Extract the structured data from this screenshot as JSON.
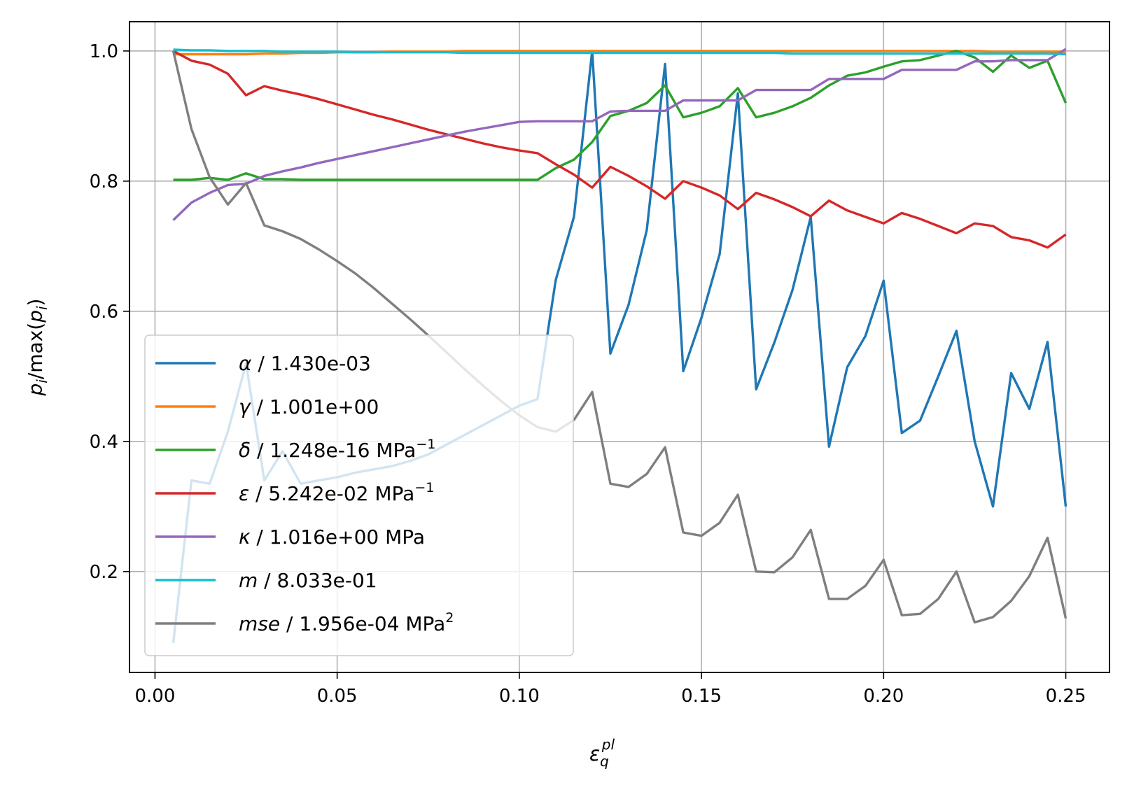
{
  "chart_data": {
    "type": "line",
    "xlabel": {
      "base": "ε",
      "sub": "q",
      "sup": "pl"
    },
    "ylabel": {
      "p": "p",
      "sub": "i",
      "text": "/max(",
      "p2": "p",
      "sub2": "i",
      "close": ")"
    },
    "xlim": [
      -0.007,
      0.262
    ],
    "ylim": [
      0.045,
      1.045
    ],
    "xticks": [
      0.0,
      0.05,
      0.1,
      0.15,
      0.2,
      0.25
    ],
    "xtick_labels": [
      "0.00",
      "0.05",
      "0.10",
      "0.15",
      "0.20",
      "0.25"
    ],
    "yticks": [
      0.2,
      0.4,
      0.6,
      0.8,
      1.0
    ],
    "ytick_labels": [
      "0.2",
      "0.4",
      "0.6",
      "0.8",
      "1.0"
    ],
    "grid": true,
    "legend_position": "lower-left",
    "x": [
      0.005,
      0.01,
      0.015,
      0.02,
      0.025,
      0.03,
      0.035,
      0.04,
      0.045,
      0.05,
      0.055,
      0.06,
      0.065,
      0.07,
      0.075,
      0.08,
      0.085,
      0.09,
      0.095,
      0.1,
      0.105,
      0.11,
      0.115,
      0.12,
      0.125,
      0.13,
      0.135,
      0.14,
      0.145,
      0.15,
      0.155,
      0.16,
      0.165,
      0.17,
      0.175,
      0.18,
      0.185,
      0.19,
      0.195,
      0.2,
      0.205,
      0.21,
      0.215,
      0.22,
      0.225,
      0.23,
      0.235,
      0.24,
      0.245,
      0.25
    ],
    "series": [
      {
        "name": "alpha",
        "symbol": "α",
        "label": " / 1.430e-03",
        "unit_sup": "",
        "color": "#1f77b4",
        "values": [
          0.09,
          0.34,
          0.335,
          0.415,
          0.52,
          0.34,
          0.385,
          0.335,
          0.34,
          0.345,
          0.352,
          0.357,
          0.362,
          0.37,
          0.38,
          0.395,
          0.41,
          0.425,
          0.44,
          0.455,
          0.465,
          0.648,
          0.745,
          1.0,
          0.535,
          0.61,
          0.725,
          0.98,
          0.508,
          0.59,
          0.688,
          0.935,
          0.48,
          0.552,
          0.633,
          0.745,
          0.392,
          0.514,
          0.562,
          0.647,
          0.413,
          0.432,
          0.5,
          0.57,
          0.4,
          0.3,
          0.505,
          0.45,
          0.553,
          0.3
        ]
      },
      {
        "name": "gamma",
        "symbol": "γ",
        "label": " / 1.001e+00",
        "unit_sup": "",
        "color": "#ff7f0e",
        "values": [
          0.995,
          0.995,
          0.995,
          0.995,
          0.995,
          0.996,
          0.996,
          0.997,
          0.997,
          0.998,
          0.998,
          0.998,
          0.999,
          0.999,
          0.999,
          0.999,
          1.0,
          1.0,
          1.0,
          1.0,
          1.0,
          1.0,
          1.0,
          1.0,
          1.0,
          1.0,
          1.0,
          1.0,
          1.0,
          1.0,
          1.0,
          1.0,
          1.0,
          1.0,
          1.0,
          1.0,
          1.0,
          1.0,
          1.0,
          1.0,
          1.0,
          1.0,
          1.0,
          1.0,
          1.0,
          0.999,
          0.999,
          0.999,
          0.999,
          0.999
        ]
      },
      {
        "name": "delta",
        "symbol": "δ",
        "label": " / 1.248e-16 MPa",
        "unit_sup": "−1",
        "color": "#2ca02c",
        "values": [
          0.802,
          0.802,
          0.805,
          0.802,
          0.812,
          0.803,
          0.803,
          0.802,
          0.802,
          0.802,
          0.802,
          0.802,
          0.802,
          0.802,
          0.802,
          0.802,
          0.802,
          0.802,
          0.802,
          0.802,
          0.802,
          0.82,
          0.833,
          0.86,
          0.9,
          0.908,
          0.92,
          0.947,
          0.898,
          0.905,
          0.915,
          0.943,
          0.898,
          0.905,
          0.915,
          0.928,
          0.947,
          0.962,
          0.967,
          0.976,
          0.984,
          0.986,
          0.993,
          1.0,
          0.99,
          0.968,
          0.993,
          0.974,
          0.985,
          0.92
        ]
      },
      {
        "name": "epsilon",
        "symbol": "ε",
        "label": " / 5.242e-02 MPa",
        "unit_sup": "−1",
        "color": "#d62728",
        "values": [
          1.0,
          0.985,
          0.979,
          0.965,
          0.932,
          0.946,
          0.939,
          0.933,
          0.926,
          0.918,
          0.91,
          0.902,
          0.895,
          0.887,
          0.879,
          0.872,
          0.865,
          0.858,
          0.852,
          0.847,
          0.843,
          0.826,
          0.81,
          0.79,
          0.822,
          0.808,
          0.792,
          0.773,
          0.8,
          0.79,
          0.778,
          0.757,
          0.782,
          0.772,
          0.76,
          0.746,
          0.77,
          0.755,
          0.745,
          0.735,
          0.751,
          0.742,
          0.731,
          0.72,
          0.735,
          0.731,
          0.714,
          0.709,
          0.698,
          0.718
        ]
      },
      {
        "name": "kappa",
        "symbol": "κ",
        "label": " / 1.016e+00 MPa",
        "unit_sup": "",
        "color": "#9467bd",
        "values": [
          0.74,
          0.767,
          0.782,
          0.794,
          0.796,
          0.808,
          0.815,
          0.821,
          0.828,
          0.834,
          0.84,
          0.846,
          0.852,
          0.858,
          0.864,
          0.87,
          0.876,
          0.881,
          0.886,
          0.891,
          0.892,
          0.892,
          0.892,
          0.892,
          0.907,
          0.908,
          0.908,
          0.908,
          0.924,
          0.924,
          0.924,
          0.924,
          0.94,
          0.94,
          0.94,
          0.94,
          0.957,
          0.957,
          0.957,
          0.957,
          0.971,
          0.971,
          0.971,
          0.971,
          0.984,
          0.984,
          0.986,
          0.986,
          0.986,
          1.003
        ]
      },
      {
        "name": "m",
        "symbol": "m",
        "label": " / 8.033e-01",
        "unit_sup": "",
        "color": "#17becf",
        "values": [
          1.002,
          1.001,
          1.001,
          1.0,
          1.0,
          1.0,
          0.999,
          0.999,
          0.999,
          0.999,
          0.998,
          0.998,
          0.998,
          0.998,
          0.998,
          0.998,
          0.997,
          0.997,
          0.997,
          0.997,
          0.997,
          0.997,
          0.997,
          0.997,
          0.997,
          0.997,
          0.997,
          0.997,
          0.997,
          0.997,
          0.997,
          0.997,
          0.997,
          0.997,
          0.996,
          0.996,
          0.996,
          0.996,
          0.996,
          0.996,
          0.996,
          0.996,
          0.996,
          0.996,
          0.996,
          0.996,
          0.996,
          0.996,
          0.996,
          0.995
        ]
      },
      {
        "name": "mse",
        "symbol": "mse",
        "label": " / 1.956e-04 MPa",
        "unit_sup": "2",
        "color": "#7f7f7f",
        "values": [
          1.0,
          0.88,
          0.806,
          0.764,
          0.797,
          0.732,
          0.723,
          0.711,
          0.695,
          0.677,
          0.658,
          0.636,
          0.612,
          0.588,
          0.563,
          0.537,
          0.511,
          0.486,
          0.462,
          0.44,
          0.422,
          0.415,
          0.433,
          0.476,
          0.335,
          0.33,
          0.35,
          0.391,
          0.26,
          0.255,
          0.275,
          0.318,
          0.2,
          0.199,
          0.222,
          0.264,
          0.158,
          0.158,
          0.178,
          0.218,
          0.133,
          0.135,
          0.158,
          0.2,
          0.122,
          0.13,
          0.155,
          0.193,
          0.252,
          0.128
        ]
      }
    ]
  }
}
